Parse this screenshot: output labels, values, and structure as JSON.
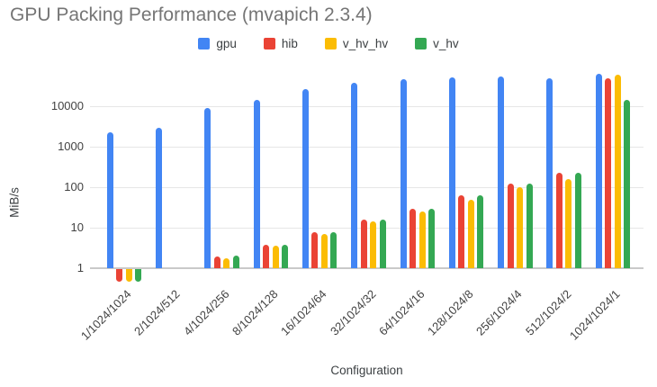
{
  "title": "GPU Packing Performance (mvapich 2.3.4)",
  "colors": {
    "series_blue": "#4285F4",
    "series_red": "#EA4335",
    "series_yellow": "#FBBC04",
    "series_green": "#34A853",
    "grid": "#e6e6e6",
    "baseline": "#c9c9c9",
    "title_text": "#757575",
    "tick_text": "#424242"
  },
  "legend": {
    "position": "top",
    "items": [
      {
        "label": "gpu",
        "color": "#4285F4"
      },
      {
        "label": "hib",
        "color": "#EA4335"
      },
      {
        "label": "v_hv_hv",
        "color": "#FBBC04"
      },
      {
        "label": "v_hv",
        "color": "#34A853"
      }
    ]
  },
  "chart_data": {
    "type": "bar",
    "title": "GPU Packing Performance (mvapich 2.3.4)",
    "xlabel": "Configuration",
    "ylabel": "MiB/s",
    "yscale": "log",
    "ylim": [
      0.5,
      100000
    ],
    "y_ticks": [
      1,
      10,
      100,
      1000,
      10000
    ],
    "grid": true,
    "legend_position": "top",
    "categories": [
      "1/1024/1024",
      "2/1024/512",
      "4/1024/256",
      "8/1024/128",
      "16/1024/64",
      "32/1024/32",
      "64/1024/16",
      "128/1024/8",
      "256/1024/4",
      "512/1024/2",
      "1024/1024/1"
    ],
    "series": [
      {
        "name": "gpu",
        "color": "#4285F4",
        "values": [
          2300,
          3000,
          9000,
          14000,
          26000,
          38000,
          46000,
          52000,
          55000,
          50000,
          62000
        ]
      },
      {
        "name": "hib",
        "color": "#EA4335",
        "values": [
          0.5,
          null,
          1.9,
          3.8,
          7.6,
          15.5,
          30,
          63,
          120,
          230,
          48000
        ]
      },
      {
        "name": "v_hv_hv",
        "color": "#FBBC04",
        "values": [
          0.5,
          null,
          1.8,
          3.6,
          7.1,
          14,
          25,
          50,
          100,
          160,
          59000
        ]
      },
      {
        "name": "v_hv",
        "color": "#34A853",
        "values": [
          0.5,
          null,
          2.0,
          3.8,
          7.6,
          15.5,
          30,
          62,
          122,
          225,
          14000
        ]
      }
    ]
  }
}
